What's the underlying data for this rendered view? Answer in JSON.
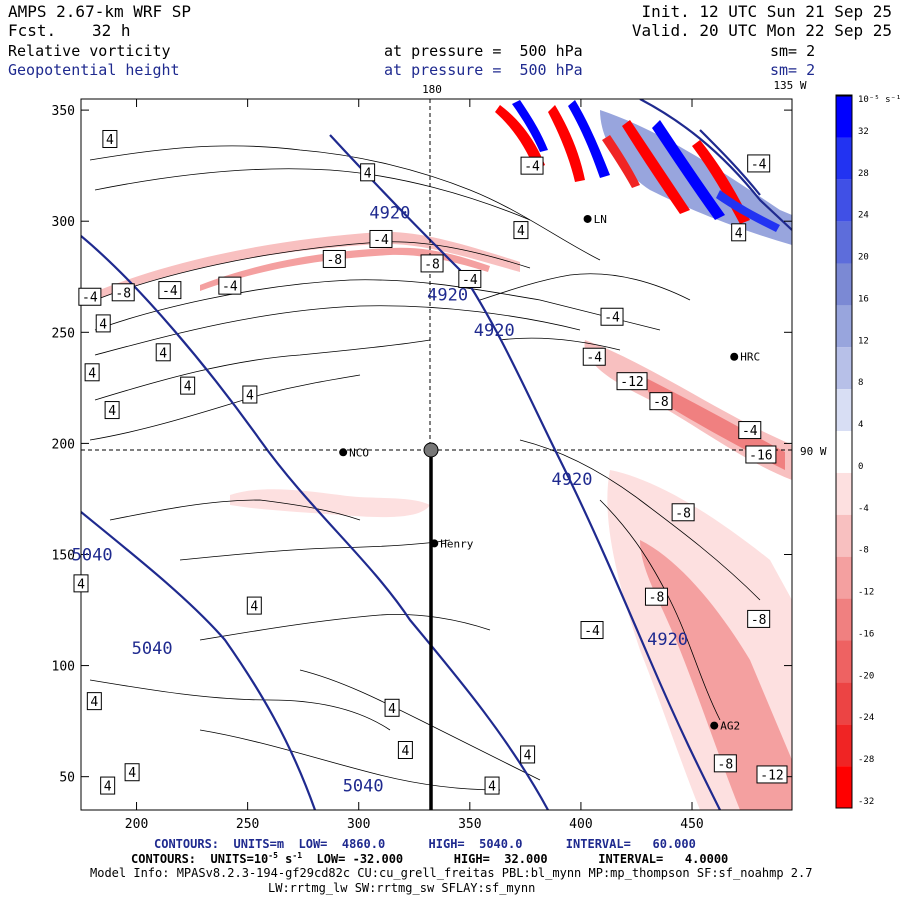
{
  "header": {
    "model": "AMPS 2.67-km WRF SP",
    "fcst_label": "Fcst.",
    "fcst_value": "32 h",
    "init": "Init. 12 UTC Sun 21 Sep 25",
    "valid": "Valid. 20 UTC Mon 22 Sep 25",
    "field1": "Relative vorticity",
    "field1_level": "at pressure =  500 hPa",
    "field1_sm": "sm= 2",
    "field2": "Geopotential height",
    "field2_level": "at pressure =  500 hPa",
    "field2_sm": "sm= 2"
  },
  "map_labels": {
    "lon_180": "180",
    "lon_135w": "135 W",
    "lon_90w": "90 W"
  },
  "stations": [
    {
      "name": "NCO",
      "x": 293,
      "y": 196
    },
    {
      "name": "Henry",
      "x": 334,
      "y": 155
    },
    {
      "name": "HRC",
      "x": 469,
      "y": 239
    },
    {
      "name": "AG2",
      "x": 460,
      "y": 73
    },
    {
      "name": "LN",
      "x": 403,
      "y": 301
    }
  ],
  "colorbar": {
    "unit": "10⁻⁵ s⁻¹",
    "ticks": [
      "32",
      "28",
      "24",
      "20",
      "16",
      "12",
      "8",
      "4",
      "0",
      "-4",
      "-8",
      "-12",
      "-16",
      "-20",
      "-24",
      "-28",
      "-32"
    ],
    "colors": [
      "#0000ff",
      "#2233f2",
      "#4050e6",
      "#5d6ddb",
      "#7b89d4",
      "#98a5dd",
      "#b7c0e8",
      "#d8def4",
      "#ffffff",
      "#fde0e0",
      "#f8c0c0",
      "#f4a0a0",
      "#f08080",
      "#ee6262",
      "#ec4444",
      "#f02424",
      "#ff0000"
    ]
  },
  "chart_data": {
    "type": "contour",
    "title": "Relative vorticity and Geopotential height at 500 hPa",
    "x_ticks": [
      200,
      250,
      300,
      350,
      400,
      450
    ],
    "y_ticks": [
      50,
      100,
      150,
      200,
      250,
      300,
      350
    ],
    "xlim": [
      175,
      495
    ],
    "ylim": [
      35,
      355
    ],
    "height_contours": {
      "units": "m",
      "low": 4860.0,
      "high": 5040.0,
      "interval": 60.0,
      "labels": [
        {
          "text": "5040",
          "x": 180,
          "y": 150
        },
        {
          "text": "5040",
          "x": 207,
          "y": 108
        },
        {
          "text": "5040",
          "x": 302,
          "y": 46
        },
        {
          "text": "4920",
          "x": 314,
          "y": 304
        },
        {
          "text": "4920",
          "x": 340,
          "y": 267
        },
        {
          "text": "4920",
          "x": 361,
          "y": 251
        },
        {
          "text": "4920",
          "x": 396,
          "y": 184
        },
        {
          "text": "4920",
          "x": 439,
          "y": 112
        }
      ]
    },
    "vorticity_contour_labels": [
      {
        "text": "4",
        "x": 188,
        "y": 337
      },
      {
        "text": "4",
        "x": 185,
        "y": 254
      },
      {
        "text": "4",
        "x": 180,
        "y": 232
      },
      {
        "text": "4",
        "x": 212,
        "y": 241
      },
      {
        "text": "4",
        "x": 223,
        "y": 226
      },
      {
        "text": "4",
        "x": 189,
        "y": 215
      },
      {
        "text": "4",
        "x": 251,
        "y": 222
      },
      {
        "text": "4",
        "x": 175,
        "y": 137
      },
      {
        "text": "4",
        "x": 253,
        "y": 127
      },
      {
        "text": "4",
        "x": 181,
        "y": 84
      },
      {
        "text": "4",
        "x": 198,
        "y": 52
      },
      {
        "text": "4",
        "x": 187,
        "y": 46
      },
      {
        "text": "4",
        "x": 315,
        "y": 81
      },
      {
        "text": "4",
        "x": 321,
        "y": 62
      },
      {
        "text": "4",
        "x": 376,
        "y": 60
      },
      {
        "text": "4",
        "x": 360,
        "y": 46
      },
      {
        "text": "4",
        "x": 304,
        "y": 322
      },
      {
        "text": "4",
        "x": 373,
        "y": 296
      },
      {
        "text": "4",
        "x": 471,
        "y": 295
      },
      {
        "text": "-4",
        "x": 179,
        "y": 266
      },
      {
        "text": "-4",
        "x": 242,
        "y": 271
      },
      {
        "text": "-4",
        "x": 215,
        "y": 269
      },
      {
        "text": "-4",
        "x": 310,
        "y": 292
      },
      {
        "text": "-4",
        "x": 350,
        "y": 274
      },
      {
        "text": "-4",
        "x": 378,
        "y": 325
      },
      {
        "text": "-4",
        "x": 414,
        "y": 257
      },
      {
        "text": "-4",
        "x": 406,
        "y": 239
      },
      {
        "text": "-4",
        "x": 476,
        "y": 206
      },
      {
        "text": "-4",
        "x": 480,
        "y": 326
      },
      {
        "text": "-4",
        "x": 405,
        "y": 116
      },
      {
        "text": "-8",
        "x": 194,
        "y": 268
      },
      {
        "text": "-8",
        "x": 289,
        "y": 283
      },
      {
        "text": "-8",
        "x": 333,
        "y": 281
      },
      {
        "text": "-8",
        "x": 436,
        "y": 219
      },
      {
        "text": "-8",
        "x": 446,
        "y": 169
      },
      {
        "text": "-8",
        "x": 434,
        "y": 131
      },
      {
        "text": "-8",
        "x": 480,
        "y": 121
      },
      {
        "text": "-8",
        "x": 465,
        "y": 56
      },
      {
        "text": "-12",
        "x": 423,
        "y": 228
      },
      {
        "text": "-12",
        "x": 486,
        "y": 51
      },
      {
        "text": "-16",
        "x": 481,
        "y": 195
      }
    ]
  },
  "footer": {
    "height_line": "CONTOURS:  UNITS=m  LOW=  4860.0      HIGH=  5040.0      INTERVAL=   60.000",
    "vort_prefix": "CONTOURS:  UNITS=10",
    "vort_exp1": "-5",
    "vort_mid": " s",
    "vort_exp2": "-1",
    "vort_rest": "  LOW= -32.000       HIGH=  32.000       INTERVAL=   4.0000",
    "model_info": "Model Info: MPASv8.2.3-194-gf29cd82c CU:cu_grell_freitas PBL:bl_mynn MP:mp_thompson SF:sf_noahmp 2.7",
    "physics": "LW:rrtmg_lw SW:rrtmg_sw SFLAY:sf_mynn"
  }
}
